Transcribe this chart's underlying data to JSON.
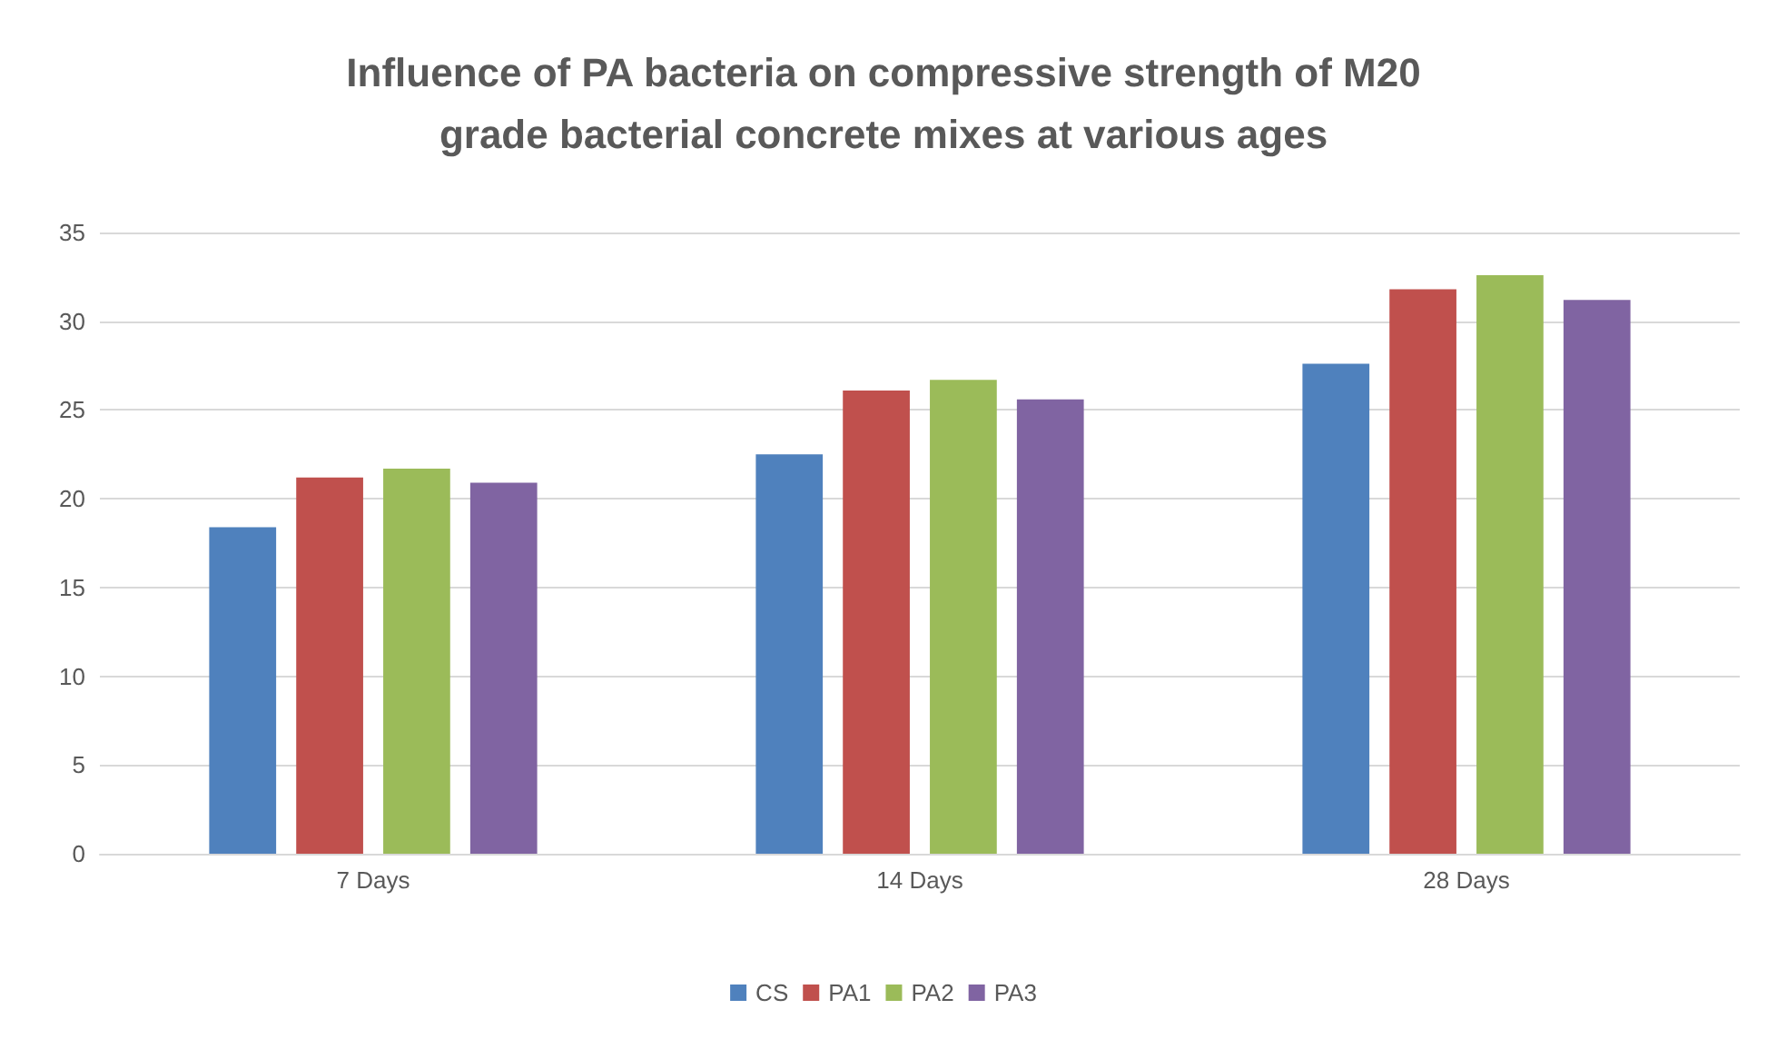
{
  "chart_data": {
    "type": "bar",
    "title": "Influence of PA bacteria on compressive strength of M20\ngrade bacterial concrete mixes at various ages",
    "categories": [
      "7 Days",
      "14 Days",
      "28 Days"
    ],
    "series": [
      {
        "name": "CS",
        "color": "#4f81bd",
        "values": [
          18.4,
          22.5,
          27.6
        ]
      },
      {
        "name": "PA1",
        "color": "#c0504d",
        "values": [
          21.2,
          26.1,
          31.8
        ]
      },
      {
        "name": "PA2",
        "color": "#9bbb59",
        "values": [
          21.7,
          26.7,
          32.6
        ]
      },
      {
        "name": "PA3",
        "color": "#8064a2",
        "values": [
          20.9,
          25.6,
          31.2
        ]
      }
    ],
    "ylim": [
      0,
      35
    ],
    "yticks": [
      0,
      5,
      10,
      15,
      20,
      25,
      30,
      35
    ],
    "grid": "y",
    "legend": "bottom"
  }
}
